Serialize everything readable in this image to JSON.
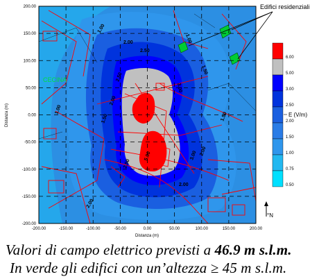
{
  "map": {
    "xlabel": "Distanza (m)",
    "ylabel": "Distanza (m)",
    "x_ticks": [
      "-200.00",
      "-150.00",
      "-100.00",
      "-50.00",
      "0.00",
      "50.00",
      "100.00",
      "150.00",
      "200.00"
    ],
    "y_ticks": [
      "200.00",
      "150.00",
      "100.00",
      "50.00",
      "0.00",
      "-50.00",
      "-100.00",
      "-150.00",
      "-200.00"
    ],
    "xlim": [
      -200,
      200
    ],
    "ylim": [
      -200,
      200
    ],
    "area_label": "CECINA",
    "buildings_callout": "Edifici residenziali",
    "north_label": "°N",
    "contour_labels": [
      "1.00",
      "1.50",
      "2.00",
      "2.50",
      "3.00",
      "5.00"
    ],
    "legend": {
      "title": "E (V/m)",
      "entries": [
        {
          "value": "6.00",
          "color": "#ff0000"
        },
        {
          "value": "5.00",
          "color": "#c0c0c0"
        },
        {
          "value": "3.00",
          "color": "#0000ff"
        },
        {
          "value": "2.50",
          "color": "#0033dd"
        },
        {
          "value": "2.00",
          "color": "#1a5fe0"
        },
        {
          "value": "1.50",
          "color": "#2a7ce6"
        },
        {
          "value": "1.00",
          "color": "#2f96ec"
        },
        {
          "value": "0.75",
          "color": "#22b8f0"
        },
        {
          "value": "0.50",
          "color": "#00e0ff"
        }
      ]
    },
    "colors": {
      "field_bg": "#2c8fe3",
      "grid": "#000000",
      "overlay_lines": "#ff0000",
      "buildings": "#00cc33"
    }
  },
  "caption": {
    "line1_prefix": "Valori di campo elettrico previsti a",
    "line1_value": "46.9 m s.l.m.",
    "line2": "In verde gli edifici con un’altezza ≥ 45 m s.l.m."
  }
}
